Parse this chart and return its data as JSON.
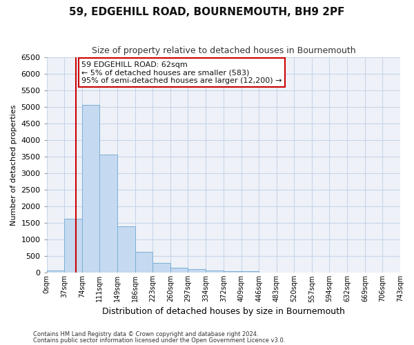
{
  "title": "59, EDGEHILL ROAD, BOURNEMOUTH, BH9 2PF",
  "subtitle": "Size of property relative to detached houses in Bournemouth",
  "xlabel": "Distribution of detached houses by size in Bournemouth",
  "ylabel": "Number of detached properties",
  "footer_line1": "Contains HM Land Registry data © Crown copyright and database right 2024.",
  "footer_line2": "Contains public sector information licensed under the Open Government Licence v3.0.",
  "annotation_title": "59 EDGEHILL ROAD: 62sqm",
  "annotation_line1": "← 5% of detached houses are smaller (583)",
  "annotation_line2": "95% of semi-detached houses are larger (12,200) →",
  "property_size_sqm": 62,
  "bar_color": "#c5d9f0",
  "bar_edge_color": "#7bafd4",
  "red_line_color": "#cc0000",
  "annotation_box_color": "#cc0000",
  "background_color": "#ffffff",
  "plot_bg_color": "#eef2f8",
  "grid_color": "#c8d4e8",
  "ylim": [
    0,
    6500
  ],
  "yticks": [
    0,
    500,
    1000,
    1500,
    2000,
    2500,
    3000,
    3500,
    4000,
    4500,
    5000,
    5500,
    6000,
    6500
  ],
  "bin_labels": [
    "0sqm",
    "37sqm",
    "74sqm",
    "111sqm",
    "149sqm",
    "186sqm",
    "223sqm",
    "260sqm",
    "297sqm",
    "334sqm",
    "372sqm",
    "409sqm",
    "446sqm",
    "483sqm",
    "520sqm",
    "557sqm",
    "594sqm",
    "632sqm",
    "669sqm",
    "706sqm",
    "743sqm"
  ],
  "bar_values": [
    75,
    1630,
    5060,
    3570,
    1410,
    620,
    290,
    145,
    105,
    75,
    55,
    55,
    0,
    0,
    0,
    0,
    0,
    0,
    0,
    0
  ],
  "bin_edges": [
    0,
    37,
    74,
    111,
    149,
    186,
    223,
    260,
    297,
    334,
    372,
    409,
    446,
    483,
    520,
    557,
    594,
    632,
    669,
    706,
    743
  ]
}
